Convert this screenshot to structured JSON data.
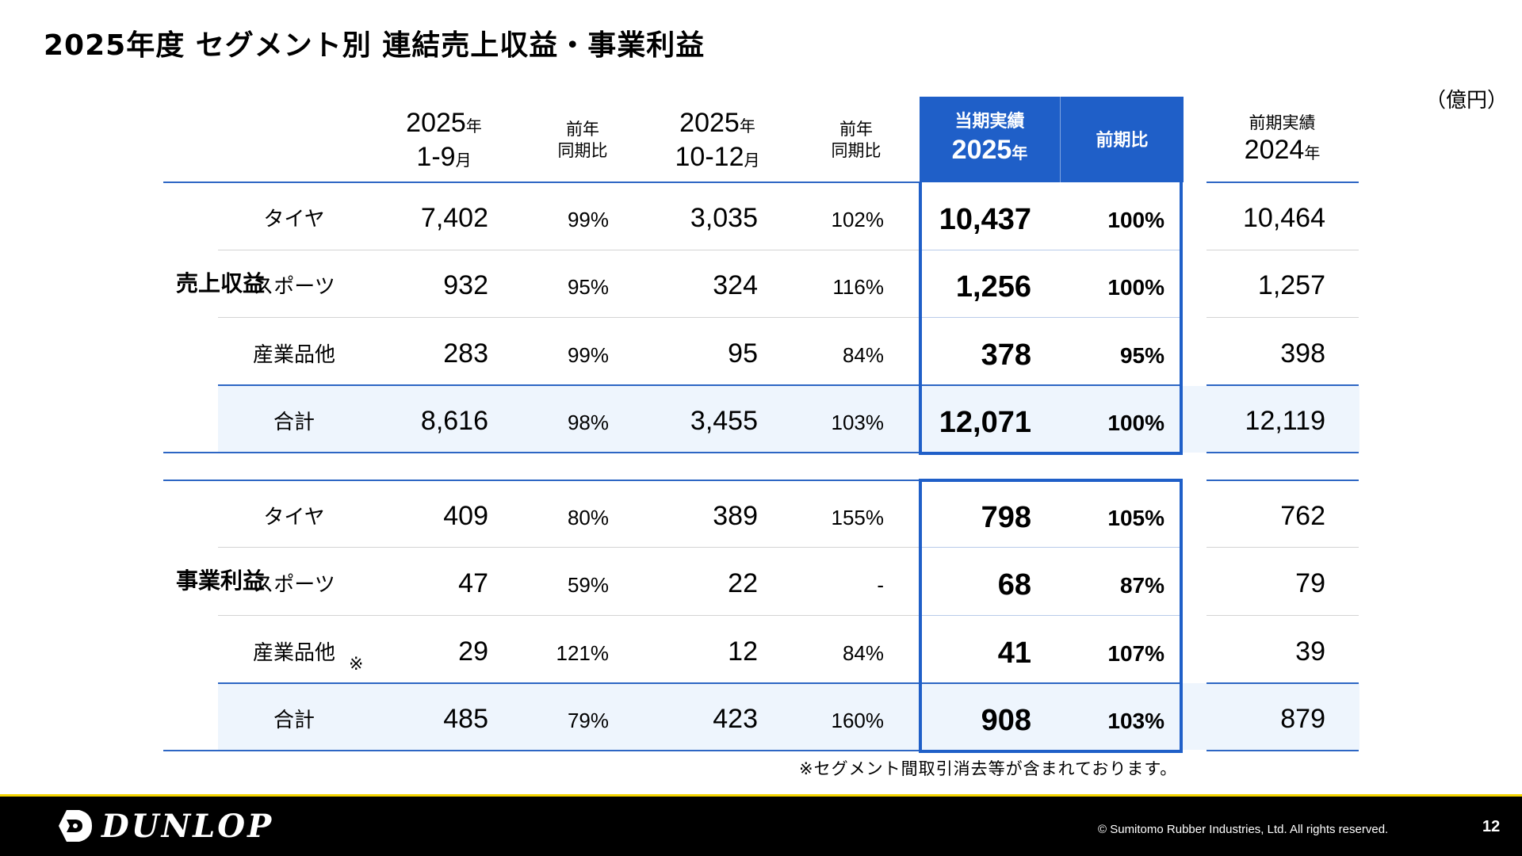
{
  "title": "2025年度 セグメント別 連結売上収益・事業利益",
  "unit": "（億円）",
  "header": {
    "col1_year": "2025",
    "col1_year_suffix": "年",
    "col1_period": "1-9",
    "col1_period_suffix": "月",
    "col2_line1": "前年",
    "col2_line2": "同期比",
    "col3_year": "2025",
    "col3_year_suffix": "年",
    "col3_period": "10-12",
    "col3_period_suffix": "月",
    "col4_line1": "前年",
    "col4_line2": "同期比",
    "col5_line1": "当期実績",
    "col5_year": "2025",
    "col5_year_suffix": "年",
    "col6": "前期比",
    "col7_line1": "前期実績",
    "col7_year": "2024",
    "col7_year_suffix": "年"
  },
  "sections": [
    {
      "label": "売上収益",
      "rows": [
        {
          "name": "タイヤ",
          "ytd": "7,402",
          "ytd_ratio": "99%",
          "q4": "3,035",
          "q4_ratio": "102%",
          "fy": "10,437",
          "fy_ratio": "100%",
          "prev": "10,464"
        },
        {
          "name": "スポーツ",
          "ytd": "932",
          "ytd_ratio": "95%",
          "q4": "324",
          "q4_ratio": "116%",
          "fy": "1,256",
          "fy_ratio": "100%",
          "prev": "1,257"
        },
        {
          "name": "産業品他",
          "ytd": "283",
          "ytd_ratio": "99%",
          "q4": "95",
          "q4_ratio": "84%",
          "fy": "378",
          "fy_ratio": "95%",
          "prev": "398"
        },
        {
          "name": "合計",
          "ytd": "8,616",
          "ytd_ratio": "98%",
          "q4": "3,455",
          "q4_ratio": "103%",
          "fy": "12,071",
          "fy_ratio": "100%",
          "prev": "12,119"
        }
      ]
    },
    {
      "label": "事業利益",
      "rows": [
        {
          "name": "タイヤ",
          "ytd": "409",
          "ytd_ratio": "80%",
          "q4": "389",
          "q4_ratio": "155%",
          "fy": "798",
          "fy_ratio": "105%",
          "prev": "762"
        },
        {
          "name": "スポーツ",
          "ytd": "47",
          "ytd_ratio": "59%",
          "q4": "22",
          "q4_ratio": "-",
          "fy": "68",
          "fy_ratio": "87%",
          "prev": "79"
        },
        {
          "name": "産業品他",
          "ytd": "29",
          "ytd_ratio": "121%",
          "q4": "12",
          "q4_ratio": "84%",
          "fy": "41",
          "fy_ratio": "107%",
          "prev": "39"
        },
        {
          "name": "合計",
          "ytd": "485",
          "ytd_ratio": "79%",
          "q4": "423",
          "q4_ratio": "160%",
          "fy": "908",
          "fy_ratio": "103%",
          "prev": "879"
        }
      ]
    }
  ],
  "note_mark": "※",
  "footnote": "※セグメント間取引消去等が含まれております。",
  "footer": {
    "logo": "DUNLOP",
    "copyright": "© Sumitomo Rubber Industries, Ltd. All rights reserved.",
    "page": "12"
  },
  "colors": {
    "accent": "#1f5fc8",
    "row_highlight": "#eef5fd",
    "footer_bg": "#000000",
    "footer_line": "#f4d400"
  }
}
